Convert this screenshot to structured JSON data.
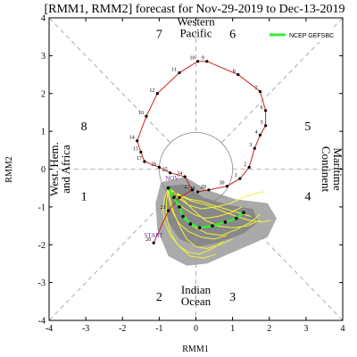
{
  "chart_data": {
    "type": "line",
    "title": "[RMM1, RMM2] forecast for Nov-29-2019 to Dec-13-2019",
    "xlabel": "RMM1",
    "ylabel": "RMM2",
    "xlim": [
      -4,
      4
    ],
    "ylim": [
      -4,
      4
    ],
    "x_ticks": [
      "-4",
      "-3",
      "-2",
      "-1",
      "0",
      "1",
      "2",
      "3",
      "4"
    ],
    "y_ticks": [
      "-4",
      "-3",
      "-2",
      "-1",
      "0",
      "1",
      "2",
      "3",
      "4"
    ],
    "phases": [
      {
        "label": "1",
        "x": -3.05,
        "y": -0.75
      },
      {
        "label": "2",
        "x": -1.0,
        "y": -3.4
      },
      {
        "label": "3",
        "x": 1.0,
        "y": -3.4
      },
      {
        "label": "4",
        "x": 3.05,
        "y": -0.75
      },
      {
        "label": "5",
        "x": 3.05,
        "y": 1.1
      },
      {
        "label": "6",
        "x": 1.0,
        "y": 3.55
      },
      {
        "label": "7",
        "x": -1.0,
        "y": 3.55
      },
      {
        "label": "8",
        "x": -3.05,
        "y": 1.1
      }
    ],
    "regions": [
      {
        "lines": [
          "Western",
          "Pacific"
        ],
        "x": 0.0,
        "y": 3.65,
        "rotate": 0
      },
      {
        "lines": [
          "Indian",
          "Ocean"
        ],
        "x": 0.0,
        "y": -3.45,
        "rotate": 0
      },
      {
        "lines": [
          "West. Hem.",
          "and Africa"
        ],
        "x": -3.6,
        "y": 0.0,
        "rotate": -90
      },
      {
        "lines": [
          "Maritime",
          "Continent"
        ],
        "x": 3.6,
        "y": 0.0,
        "rotate": 90
      }
    ],
    "legend": {
      "label": "NCEP GEFSBC",
      "color": "#33ee33",
      "position": "top-right"
    },
    "annotations": [
      {
        "text": "START",
        "x": -1.15,
        "y": -1.8,
        "color": "#7030a0"
      },
      {
        "text": "NOV",
        "x": -0.65,
        "y": -0.3,
        "color": "#7030a0"
      }
    ],
    "observed": {
      "color": "#cc2222",
      "points": [
        {
          "x": -1.15,
          "y": -1.95,
          "label": "20"
        },
        {
          "x": -0.75,
          "y": -1.1,
          "label": "21"
        },
        {
          "x": -0.45,
          "y": -0.75,
          "label": "22"
        },
        {
          "x": -0.1,
          "y": -0.55,
          "label": "23"
        },
        {
          "x": -0.3,
          "y": -0.2,
          "label": "24"
        },
        {
          "x": -0.7,
          "y": -0.1,
          "label": "25"
        },
        {
          "x": -1.0,
          "y": 0.05,
          "label": "26"
        },
        {
          "x": -1.4,
          "y": 0.2,
          "label": "17"
        },
        {
          "x": -1.5,
          "y": 0.45,
          "label": "15"
        },
        {
          "x": -1.6,
          "y": 0.75,
          "label": "14"
        },
        {
          "x": -1.35,
          "y": 1.4,
          "label": "13"
        },
        {
          "x": -1.05,
          "y": 2.0,
          "label": "12"
        },
        {
          "x": -0.45,
          "y": 2.55,
          "label": "11"
        },
        {
          "x": 0.05,
          "y": 2.85,
          "label": "10"
        },
        {
          "x": 0.3,
          "y": 2.85,
          "label": "9"
        },
        {
          "x": 1.15,
          "y": 2.5,
          "label": "8"
        },
        {
          "x": 1.75,
          "y": 2.05,
          "label": "7"
        },
        {
          "x": 1.9,
          "y": 1.55,
          "label": "6"
        },
        {
          "x": 1.9,
          "y": 1.15,
          "label": "5"
        },
        {
          "x": 1.75,
          "y": 0.9,
          "label": "4"
        },
        {
          "x": 1.6,
          "y": 0.55,
          "label": "3"
        },
        {
          "x": 1.45,
          "y": 0.05,
          "label": "2"
        },
        {
          "x": 1.2,
          "y": -0.25,
          "label": "1"
        },
        {
          "x": 0.85,
          "y": -0.45,
          "label": "30"
        },
        {
          "x": 0.35,
          "y": -0.55,
          "label": "29"
        },
        {
          "x": 0.05,
          "y": -0.6,
          "label": "28"
        }
      ]
    },
    "forecast_mean": {
      "color": "#33ee33",
      "points": [
        {
          "x": -0.75,
          "y": -0.5
        },
        {
          "x": -0.6,
          "y": -0.75
        },
        {
          "x": -0.45,
          "y": -1.0
        },
        {
          "x": -0.35,
          "y": -1.25
        },
        {
          "x": -0.15,
          "y": -1.45
        },
        {
          "x": 0.1,
          "y": -1.55
        },
        {
          "x": 0.45,
          "y": -1.5
        },
        {
          "x": 0.8,
          "y": -1.4
        },
        {
          "x": 1.1,
          "y": -1.3
        },
        {
          "x": 1.3,
          "y": -1.15
        }
      ]
    },
    "ensemble": {
      "color": "#f0f040",
      "members": [
        [
          [
            -0.75,
            -0.5
          ],
          [
            -0.55,
            -0.85
          ],
          [
            -0.35,
            -1.2
          ],
          [
            -0.1,
            -1.5
          ],
          [
            0.3,
            -1.7
          ],
          [
            0.7,
            -1.75
          ],
          [
            1.1,
            -1.6
          ],
          [
            1.5,
            -1.4
          ],
          [
            1.75,
            -1.2
          ]
        ],
        [
          [
            -0.75,
            -0.5
          ],
          [
            -0.65,
            -0.7
          ],
          [
            -0.5,
            -0.9
          ],
          [
            -0.3,
            -1.05
          ],
          [
            -0.05,
            -1.2
          ],
          [
            0.25,
            -1.3
          ],
          [
            0.6,
            -1.25
          ],
          [
            0.95,
            -1.15
          ],
          [
            1.25,
            -1.0
          ]
        ],
        [
          [
            -0.75,
            -0.5
          ],
          [
            -0.7,
            -0.8
          ],
          [
            -0.6,
            -1.15
          ],
          [
            -0.45,
            -1.5
          ],
          [
            -0.25,
            -1.85
          ],
          [
            0.0,
            -2.05
          ],
          [
            0.3,
            -2.1
          ],
          [
            0.65,
            -2.0
          ],
          [
            1.0,
            -1.85
          ]
        ],
        [
          [
            -0.75,
            -0.5
          ],
          [
            -0.5,
            -0.75
          ],
          [
            -0.2,
            -0.95
          ],
          [
            0.15,
            -1.05
          ],
          [
            0.55,
            -1.0
          ],
          [
            0.95,
            -0.9
          ],
          [
            1.3,
            -0.75
          ],
          [
            1.6,
            -0.65
          ],
          [
            1.85,
            -0.6
          ]
        ],
        [
          [
            -0.75,
            -0.5
          ],
          [
            -0.8,
            -0.85
          ],
          [
            -0.8,
            -1.25
          ],
          [
            -0.7,
            -1.65
          ],
          [
            -0.5,
            -2.0
          ],
          [
            -0.2,
            -2.2
          ],
          [
            0.1,
            -2.25
          ],
          [
            0.45,
            -2.1
          ],
          [
            0.75,
            -1.9
          ]
        ],
        [
          [
            -0.75,
            -0.5
          ],
          [
            -0.55,
            -0.65
          ],
          [
            -0.3,
            -0.85
          ],
          [
            -0.05,
            -1.1
          ],
          [
            0.25,
            -1.35
          ],
          [
            0.6,
            -1.5
          ],
          [
            1.0,
            -1.55
          ],
          [
            1.4,
            -1.5
          ],
          [
            1.75,
            -1.35
          ]
        ],
        [
          [
            -0.75,
            -0.5
          ],
          [
            -0.75,
            -0.7
          ],
          [
            -0.7,
            -0.95
          ],
          [
            -0.6,
            -1.2
          ],
          [
            -0.45,
            -1.45
          ],
          [
            -0.2,
            -1.65
          ],
          [
            0.15,
            -1.8
          ],
          [
            0.5,
            -1.85
          ],
          [
            0.85,
            -1.75
          ]
        ],
        [
          [
            -0.75,
            -0.5
          ],
          [
            -0.45,
            -0.7
          ],
          [
            -0.1,
            -0.85
          ],
          [
            0.3,
            -0.95
          ],
          [
            0.7,
            -1.1
          ],
          [
            1.1,
            -1.25
          ],
          [
            1.45,
            -1.35
          ],
          [
            1.8,
            -1.4
          ],
          [
            2.05,
            -1.35
          ]
        ],
        [
          [
            -0.75,
            -0.5
          ],
          [
            -0.85,
            -0.75
          ],
          [
            -0.9,
            -1.05
          ],
          [
            -0.85,
            -1.4
          ],
          [
            -0.7,
            -1.75
          ],
          [
            -0.45,
            -2.05
          ],
          [
            -0.15,
            -2.3
          ],
          [
            0.2,
            -2.35
          ],
          [
            0.55,
            -2.25
          ]
        ],
        [
          [
            -0.75,
            -0.5
          ],
          [
            -0.6,
            -0.6
          ],
          [
            -0.4,
            -0.7
          ],
          [
            -0.15,
            -0.8
          ],
          [
            0.15,
            -0.85
          ],
          [
            0.45,
            -0.95
          ],
          [
            0.8,
            -1.05
          ],
          [
            1.15,
            -1.15
          ],
          [
            1.5,
            -1.25
          ]
        ]
      ]
    },
    "spread": {
      "outer_color": "#aaaaaa",
      "inner_color": "#888888",
      "outer": [
        [
          -0.95,
          -0.35
        ],
        [
          -0.3,
          -0.2
        ],
        [
          0.3,
          -0.55
        ],
        [
          1.1,
          -0.8
        ],
        [
          1.95,
          -0.9
        ],
        [
          2.2,
          -1.3
        ],
        [
          1.95,
          -1.8
        ],
        [
          1.0,
          -2.2
        ],
        [
          0.3,
          -2.5
        ],
        [
          -0.25,
          -2.55
        ],
        [
          -0.75,
          -2.3
        ],
        [
          -1.05,
          -1.6
        ],
        [
          -1.1,
          -0.9
        ]
      ],
      "inner": [
        [
          -0.8,
          -0.45
        ],
        [
          -0.35,
          -0.4
        ],
        [
          0.2,
          -0.75
        ],
        [
          0.9,
          -0.95
        ],
        [
          1.55,
          -1.05
        ],
        [
          1.7,
          -1.4
        ],
        [
          1.3,
          -1.7
        ],
        [
          0.6,
          -1.95
        ],
        [
          0.05,
          -2.05
        ],
        [
          -0.45,
          -1.85
        ],
        [
          -0.75,
          -1.4
        ],
        [
          -0.85,
          -0.9
        ]
      ]
    }
  }
}
